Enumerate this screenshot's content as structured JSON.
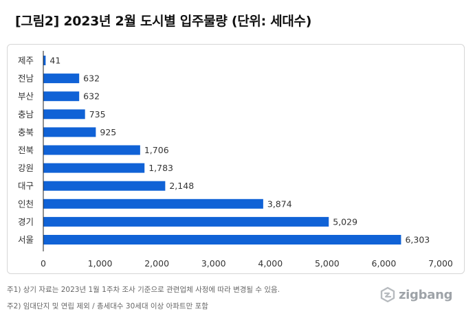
{
  "title": "[그림2] 2023년 2월 도시별 입주물량 (단위: 세대수)",
  "notes": {
    "note1": "주1) 상기 자료는 2023년 1월 1주차 조사 기준으로 관련업체 사정에 따라 변경될 수 있음.",
    "note2": "주2) 임대단지 및 연립 제외 / 총세대수 30세대 이상 아파트만 포함"
  },
  "logo": {
    "text": "zigbang"
  },
  "colors": {
    "bar": "#1062d6",
    "axis": "#222222",
    "label": "#333333"
  },
  "chart_data": {
    "type": "bar",
    "orientation": "horizontal",
    "categories": [
      "제주",
      "전남",
      "부산",
      "충남",
      "충북",
      "전북",
      "강원",
      "대구",
      "인천",
      "경기",
      "서울"
    ],
    "values": [
      41,
      632,
      632,
      735,
      925,
      1706,
      1783,
      2148,
      3874,
      5029,
      6303
    ],
    "value_labels": [
      "41",
      "632",
      "632",
      "735",
      "925",
      "1,706",
      "1,783",
      "2,148",
      "3,874",
      "5,029",
      "6,303"
    ],
    "xlim": [
      0,
      7000
    ],
    "xticks": [
      0,
      1000,
      2000,
      3000,
      4000,
      5000,
      6000,
      7000
    ],
    "xtick_labels": [
      "0",
      "1,000",
      "2,000",
      "3,000",
      "4,000",
      "5,000",
      "6,000",
      "7,000"
    ],
    "grid": false,
    "legend": "none"
  }
}
